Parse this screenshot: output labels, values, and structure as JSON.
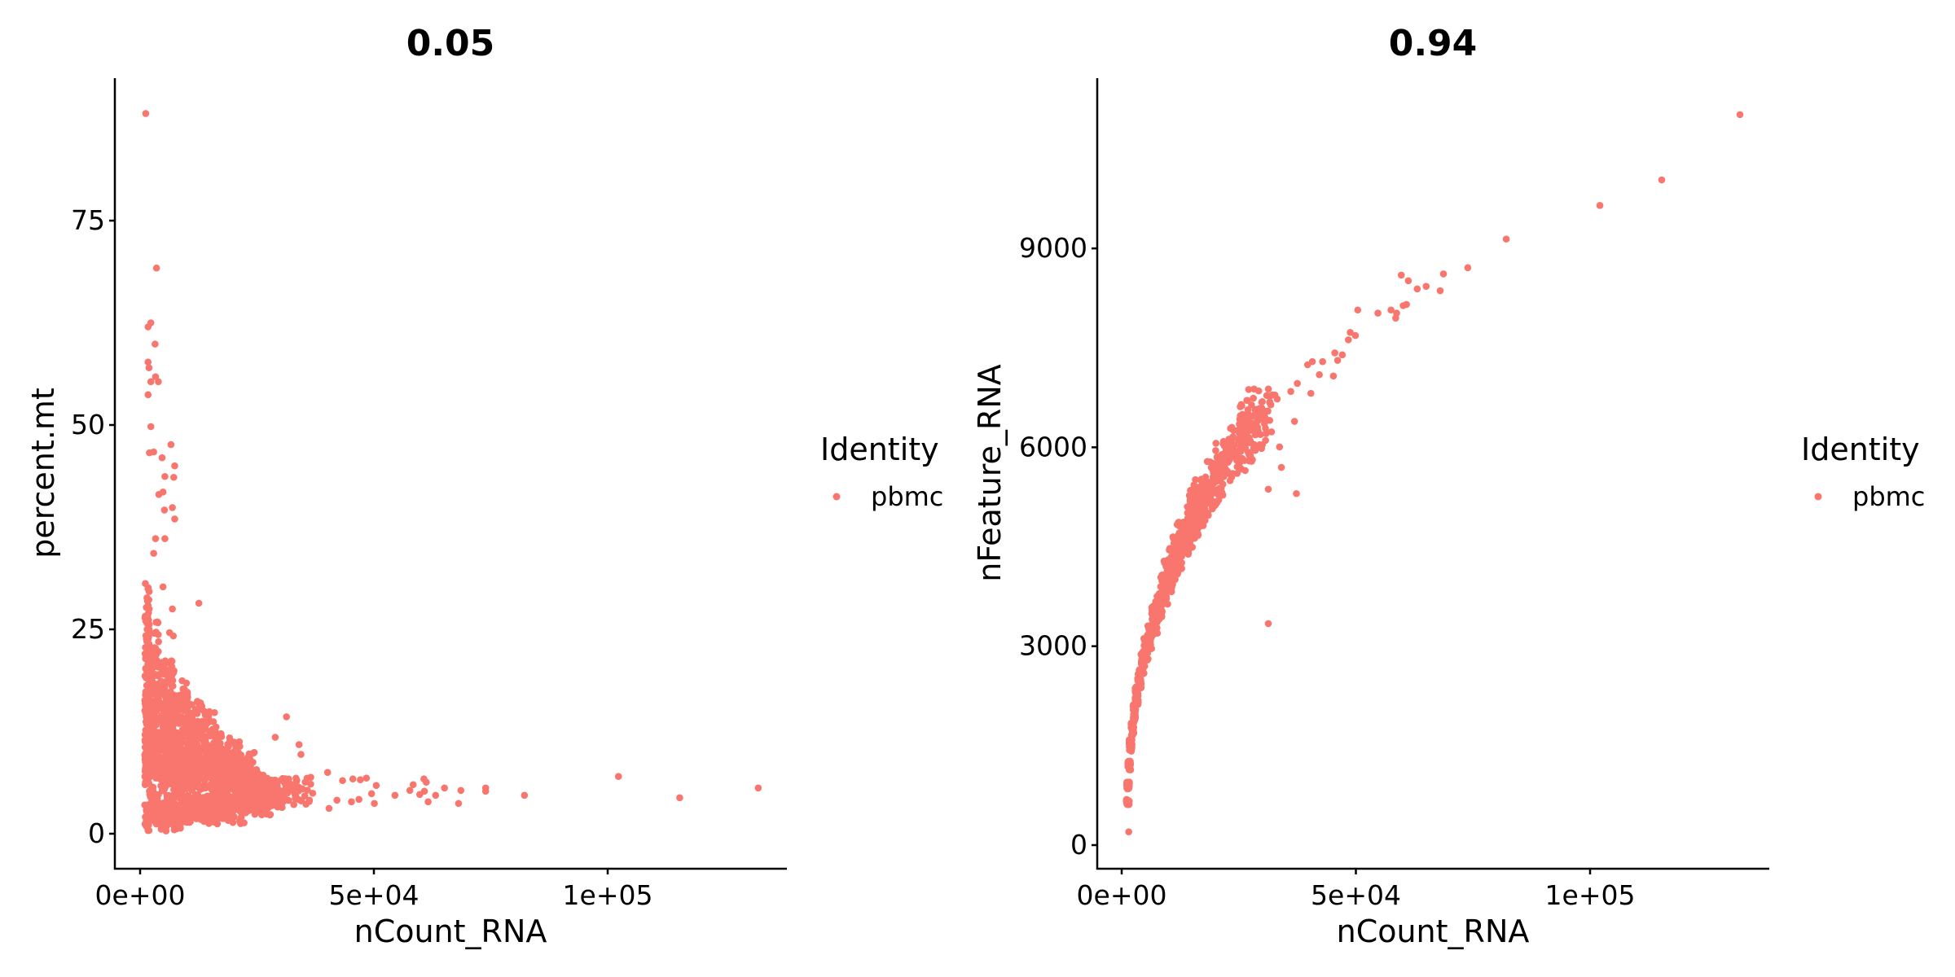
{
  "chart_data": [
    {
      "type": "scatter",
      "title": "0.05",
      "xlabel": "nCount_RNA",
      "ylabel": "percent.mt",
      "xlim": [
        -8000,
        137000
      ],
      "ylim": [
        -4.5,
        93
      ],
      "x_ticks": [
        0,
        50000,
        100000
      ],
      "x_tick_labels": [
        "0e+00",
        "5e+04",
        "1e+05"
      ],
      "y_ticks": [
        0,
        25,
        50,
        75
      ],
      "y_tick_labels": [
        "0",
        "25",
        "50",
        "75"
      ],
      "grid": false,
      "legend": {
        "title": "Identity",
        "position": "right",
        "entries": [
          {
            "label": "pbmc",
            "color": "#F8766D"
          }
        ]
      },
      "color": "#F8766D",
      "outliers": [
        [
          1200,
          88.1
        ],
        [
          3500,
          69.2
        ],
        [
          1700,
          62.0
        ],
        [
          2300,
          62.5
        ],
        [
          3200,
          59.9
        ],
        [
          1700,
          57.7
        ],
        [
          1900,
          57.0
        ],
        [
          3300,
          55.9
        ],
        [
          3900,
          55.3
        ],
        [
          2300,
          55.3
        ],
        [
          1700,
          53.7
        ],
        [
          2300,
          49.8
        ],
        [
          6600,
          47.6
        ],
        [
          2000,
          46.6
        ],
        [
          2900,
          46.7
        ],
        [
          7400,
          45.0
        ],
        [
          4700,
          46.0
        ],
        [
          5300,
          43.7
        ],
        [
          7200,
          43.6
        ],
        [
          4900,
          41.8
        ],
        [
          4000,
          41.5
        ],
        [
          6900,
          39.9
        ],
        [
          5200,
          39.6
        ],
        [
          7400,
          38.5
        ],
        [
          3300,
          36.1
        ],
        [
          5300,
          36.1
        ],
        [
          2900,
          34.3
        ],
        [
          4900,
          30.2
        ],
        [
          6900,
          27.5
        ],
        [
          12570,
          28.2
        ],
        [
          6300,
          24.6
        ],
        [
          7100,
          24.2
        ],
        [
          28900,
          11.8
        ],
        [
          31300,
          14.3
        ],
        [
          34000,
          10.9
        ],
        [
          34400,
          9.7
        ],
        [
          36500,
          6.9
        ],
        [
          40100,
          7.5
        ],
        [
          43300,
          6.5
        ],
        [
          45500,
          6.7
        ],
        [
          47100,
          6.6
        ],
        [
          48400,
          6.8
        ],
        [
          50500,
          5.9
        ],
        [
          50100,
          3.7
        ],
        [
          49500,
          4.9
        ],
        [
          46800,
          4.2
        ],
        [
          45200,
          3.9
        ],
        [
          42100,
          4.1
        ],
        [
          40400,
          3.1
        ],
        [
          54500,
          4.7
        ],
        [
          57700,
          5.3
        ],
        [
          58400,
          6.0
        ],
        [
          59800,
          4.8
        ],
        [
          60800,
          5.2
        ],
        [
          60700,
          6.7
        ],
        [
          61200,
          6.3
        ],
        [
          61600,
          3.9
        ],
        [
          63200,
          4.7
        ],
        [
          65100,
          5.6
        ],
        [
          68100,
          3.7
        ],
        [
          68600,
          5.3
        ],
        [
          73900,
          5.6
        ],
        [
          73900,
          5.2
        ],
        [
          82200,
          4.7
        ],
        [
          102300,
          7.0
        ],
        [
          115400,
          4.4
        ],
        [
          132200,
          5.6
        ]
      ],
      "bulk": [
        [
          1500,
          2
        ],
        [
          1500,
          8
        ],
        [
          1500,
          14
        ],
        [
          1500,
          20
        ],
        [
          1500,
          25
        ],
        [
          2500,
          4
        ],
        [
          2500,
          11
        ],
        [
          2500,
          18
        ],
        [
          3500,
          3
        ],
        [
          3500,
          9
        ],
        [
          3500,
          15
        ],
        [
          3500,
          21
        ],
        [
          5000,
          2
        ],
        [
          5000,
          7
        ],
        [
          5000,
          12
        ],
        [
          5000,
          17
        ],
        [
          6500,
          3
        ],
        [
          6500,
          8
        ],
        [
          6500,
          13
        ],
        [
          6500,
          17
        ],
        [
          8000,
          2
        ],
        [
          8000,
          6
        ],
        [
          8000,
          10
        ],
        [
          8000,
          14
        ],
        [
          10000,
          3
        ],
        [
          10000,
          7
        ],
        [
          10000,
          11
        ],
        [
          10000,
          15
        ],
        [
          12500,
          3
        ],
        [
          12500,
          7
        ],
        [
          12500,
          10
        ],
        [
          12500,
          13
        ],
        [
          15000,
          3
        ],
        [
          15000,
          6
        ],
        [
          15000,
          9
        ],
        [
          15000,
          12
        ],
        [
          17500,
          4
        ],
        [
          17500,
          7
        ],
        [
          17500,
          10
        ],
        [
          20000,
          3
        ],
        [
          20000,
          6
        ],
        [
          20000,
          9
        ],
        [
          22500,
          4
        ],
        [
          22500,
          6
        ],
        [
          22500,
          8
        ],
        [
          25000,
          4
        ],
        [
          25000,
          6
        ],
        [
          27500,
          5
        ],
        [
          30000,
          5
        ],
        [
          33000,
          5
        ]
      ]
    },
    {
      "type": "scatter",
      "title": "0.94",
      "xlabel": "nCount_RNA",
      "ylabel": "nFeature_RNA",
      "xlim": [
        -8000,
        137000
      ],
      "ylim": [
        -350,
        11600
      ],
      "x_ticks": [
        0,
        50000,
        100000
      ],
      "x_tick_labels": [
        "0e+00",
        "5e+04",
        "1e+05"
      ],
      "y_ticks": [
        0,
        3000,
        6000,
        9000
      ],
      "y_tick_labels": [
        "0",
        "3000",
        "6000",
        "9000"
      ],
      "grid": false,
      "legend": {
        "title": "Identity",
        "position": "right",
        "entries": [
          {
            "label": "pbmc",
            "color": "#F8766D"
          }
        ]
      },
      "color": "#F8766D",
      "outliers": [
        [
          132000,
          11018
        ],
        [
          115300,
          10033
        ],
        [
          102100,
          9648
        ],
        [
          82100,
          9141
        ],
        [
          73900,
          8709
        ],
        [
          68700,
          8615
        ],
        [
          68000,
          8362
        ],
        [
          65000,
          8428
        ],
        [
          63100,
          8390
        ],
        [
          59700,
          8597
        ],
        [
          61200,
          8512
        ],
        [
          60800,
          8155
        ],
        [
          60100,
          8137
        ],
        [
          58700,
          8024
        ],
        [
          58500,
          7949
        ],
        [
          57500,
          8071
        ],
        [
          54700,
          8024
        ],
        [
          50400,
          8071
        ],
        [
          49900,
          7686
        ],
        [
          48800,
          7733
        ],
        [
          48400,
          7621
        ],
        [
          45500,
          7424
        ],
        [
          47100,
          7395
        ],
        [
          46100,
          7311
        ],
        [
          45200,
          7076
        ],
        [
          42900,
          7292
        ],
        [
          42200,
          7095
        ],
        [
          40700,
          7292
        ],
        [
          39700,
          7245
        ],
        [
          37500,
          6964
        ],
        [
          40400,
          6814
        ],
        [
          36100,
          6842
        ],
        [
          36900,
          6391
        ],
        [
          31300,
          3341
        ],
        [
          37300,
          5302
        ],
        [
          33700,
          6006
        ],
        [
          34100,
          5697
        ],
        [
          31300,
          5368
        ],
        [
          29900,
          6682
        ],
        [
          33200,
          6729
        ],
        [
          1500,
          200
        ]
      ],
      "bulk": [
        [
          1300,
          650
        ],
        [
          1400,
          900
        ],
        [
          1600,
          1200
        ],
        [
          1900,
          1500
        ],
        [
          2300,
          1750
        ],
        [
          2700,
          2000
        ],
        [
          3200,
          2250
        ],
        [
          3800,
          2500
        ],
        [
          4500,
          2750
        ],
        [
          5200,
          2950
        ],
        [
          6000,
          3150
        ],
        [
          7000,
          3400
        ],
        [
          8000,
          3600
        ],
        [
          9000,
          3850
        ],
        [
          10000,
          4050
        ],
        [
          11000,
          4250
        ],
        [
          12000,
          4400
        ],
        [
          13000,
          4600
        ],
        [
          14000,
          4750
        ],
        [
          15000,
          4900
        ],
        [
          16000,
          5050
        ],
        [
          17000,
          5200
        ],
        [
          18500,
          5350
        ],
        [
          20000,
          5500
        ],
        [
          22000,
          5750
        ],
        [
          24000,
          5950
        ],
        [
          26000,
          6150
        ],
        [
          28000,
          6350
        ],
        [
          30000,
          6500
        ]
      ]
    }
  ]
}
